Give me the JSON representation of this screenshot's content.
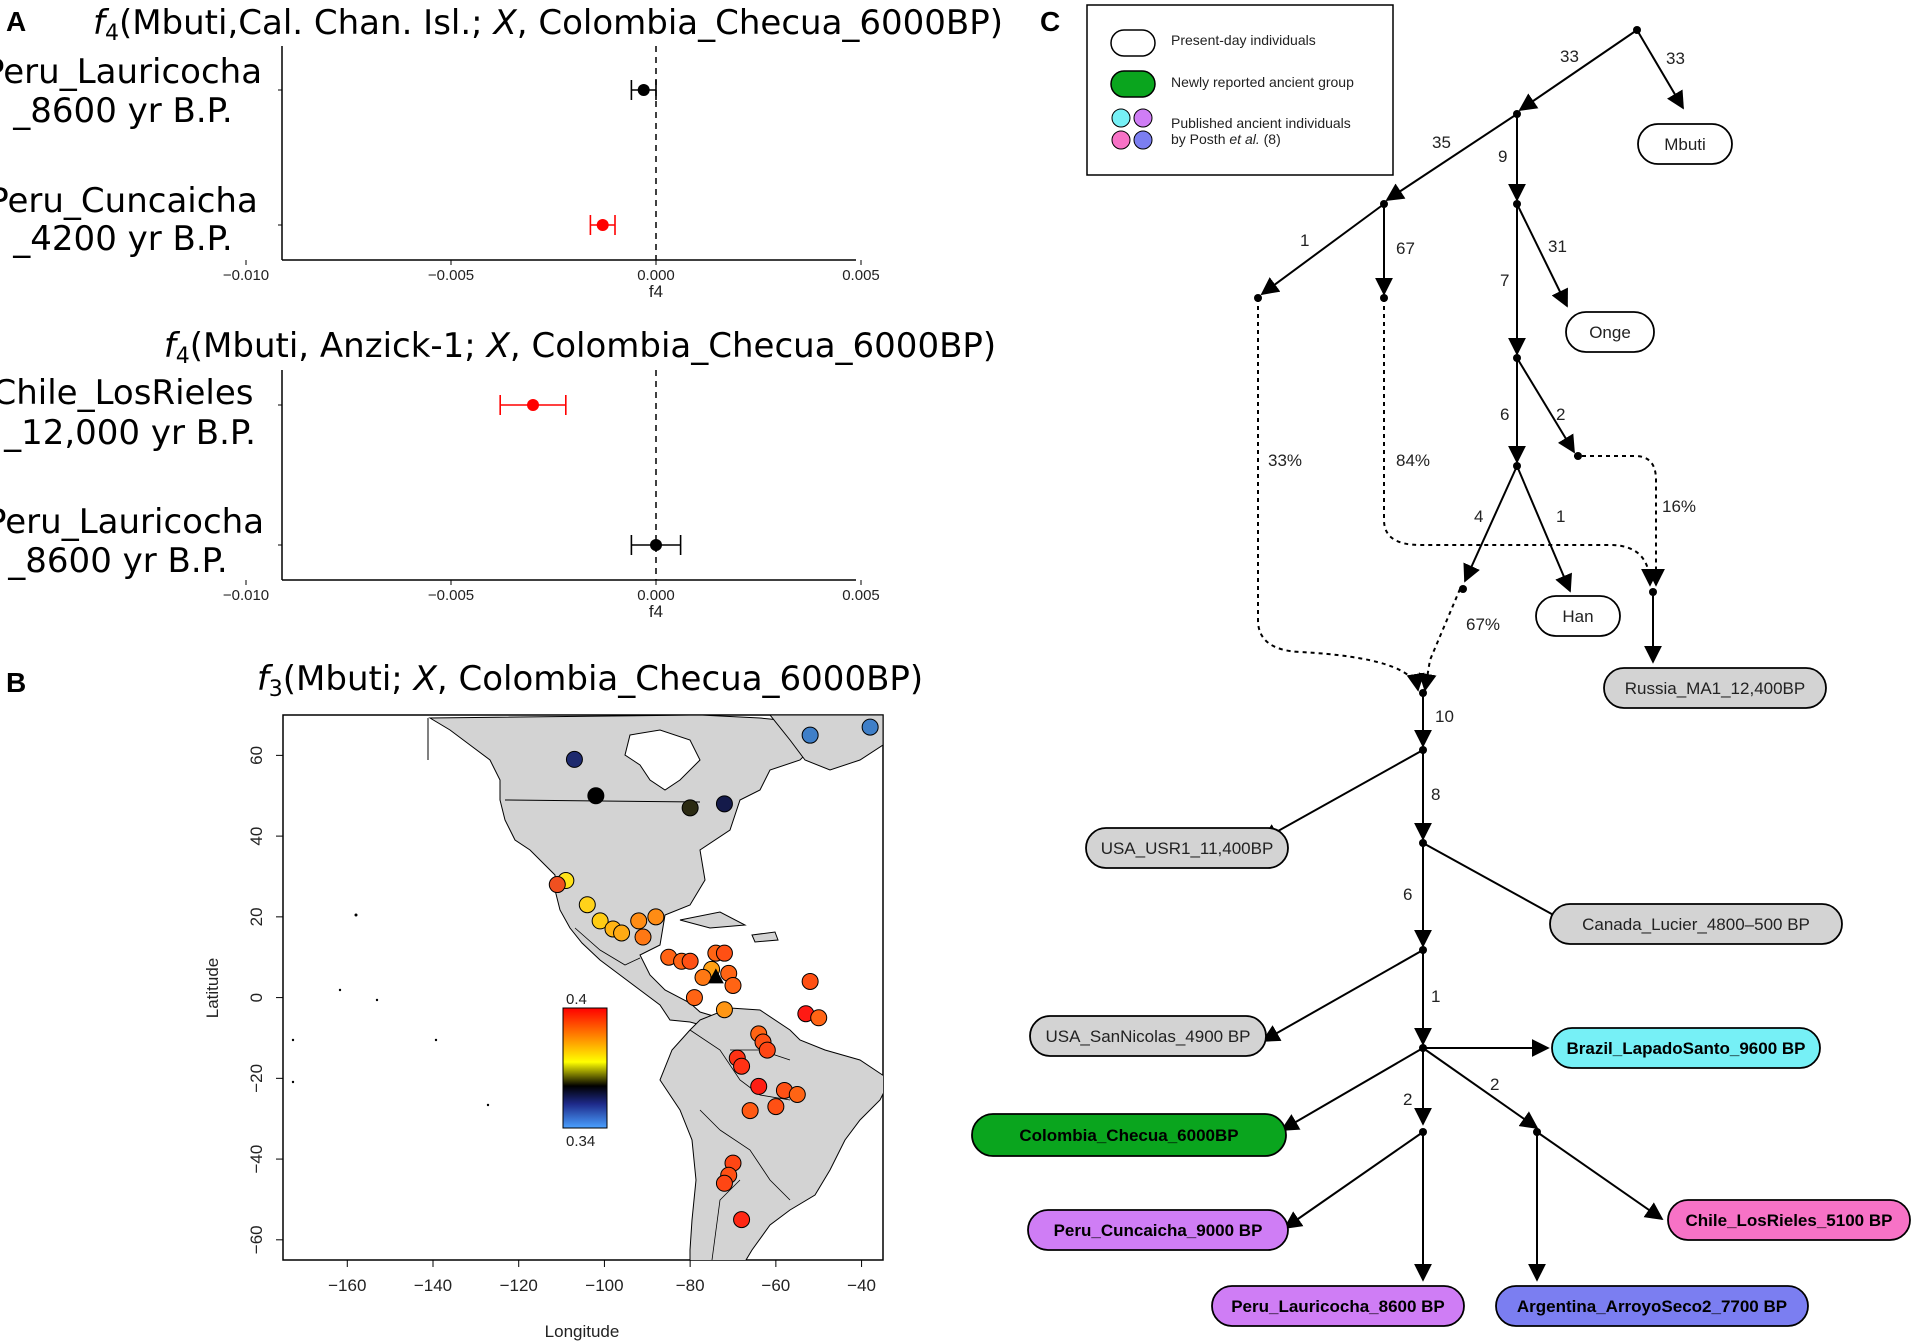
{
  "panels": {
    "a": "A",
    "b": "B",
    "c": "C"
  },
  "panel_a": {
    "plot1": {
      "title": "f₄(Mbuti,Cal. Chan. Isl.; X, Colombia_Checua_6000BP)",
      "title_parts": [
        "f",
        "4",
        "(Mbuti,Cal. Chan. Isl.; ",
        "X",
        ", Colombia_Checua_6000BP)"
      ],
      "rows": [
        {
          "line1": "Peru_Lauricocha",
          "line2": "_8600 yr B.P.",
          "value": -0.0003,
          "ci": [
            -0.0006,
            0.0
          ],
          "color": "#000000"
        },
        {
          "line1": "Peru_Cuncaicha",
          "line2": "_4200 yr B.P.",
          "value": -0.0013,
          "ci": [
            -0.0016,
            -0.001
          ],
          "color": "#ff0000"
        }
      ],
      "xticks": [
        "−0.010",
        "−0.005",
        "0.000",
        "0.005"
      ],
      "xlabel": "f4"
    },
    "plot2": {
      "title": "f₄(Mbuti, Anzick-1; X, Colombia_Checua_6000BP)",
      "title_parts": [
        "f",
        "4",
        "(Mbuti, Anzick-1; ",
        "X",
        ", Colombia_Checua_6000BP)"
      ],
      "rows": [
        {
          "line1": "Chile_LosRieles",
          "line2": "_12,000 yr B.P.",
          "value": -0.003,
          "ci": [
            -0.0038,
            -0.0022
          ],
          "color": "#ff0000"
        },
        {
          "line1": "Peru_Lauricocha",
          "line2": "_8600 yr B.P.",
          "value": 0.0,
          "ci": [
            -0.0006,
            0.0006
          ],
          "color": "#000000"
        }
      ],
      "xticks": [
        "−0.010",
        "−0.005",
        "0.000",
        "0.005"
      ],
      "xlabel": "f4"
    }
  },
  "panel_b": {
    "title_parts": [
      "f",
      "3",
      "(Mbuti;  ",
      "X",
      ", Colombia_Checua_6000BP)"
    ],
    "xlabel": "Longitude",
    "ylabel": "Latitude",
    "xticks": [
      "−160",
      "−140",
      "−120",
      "−100",
      "−80",
      "−60",
      "−40"
    ],
    "yticks": [
      "60",
      "40",
      "20",
      "0",
      "−20",
      "−40",
      "−60"
    ],
    "colorbar": {
      "max": "0.4",
      "min": "0.34"
    },
    "points": [
      {
        "lon": -107,
        "lat": 59,
        "color": "#1e2a6e"
      },
      {
        "lon": -102,
        "lat": 50,
        "color": "#000000"
      },
      {
        "lon": -80,
        "lat": 47,
        "color": "#2b2a12"
      },
      {
        "lon": -72,
        "lat": 48,
        "color": "#141a4a"
      },
      {
        "lon": -52,
        "lat": 65,
        "color": "#3f7fc8"
      },
      {
        "lon": -38,
        "lat": 67,
        "color": "#3f7fc8"
      },
      {
        "lon": -109,
        "lat": 29,
        "color": "#ffe21a"
      },
      {
        "lon": -111,
        "lat": 28,
        "color": "#f05020"
      },
      {
        "lon": -104,
        "lat": 23,
        "color": "#ffd21a"
      },
      {
        "lon": -101,
        "lat": 19,
        "color": "#ffcc14"
      },
      {
        "lon": -98,
        "lat": 17,
        "color": "#ffb414"
      },
      {
        "lon": -96,
        "lat": 16,
        "color": "#ffaa14"
      },
      {
        "lon": -92,
        "lat": 19,
        "color": "#ff8c14"
      },
      {
        "lon": -88,
        "lat": 20,
        "color": "#ff8c14"
      },
      {
        "lon": -91,
        "lat": 15,
        "color": "#ff7814"
      },
      {
        "lon": -85,
        "lat": 10,
        "color": "#ff6414"
      },
      {
        "lon": -82,
        "lat": 9,
        "color": "#ff6414"
      },
      {
        "lon": -80,
        "lat": 9,
        "color": "#ff5014"
      },
      {
        "lon": -74,
        "lat": 11,
        "color": "#ff6414"
      },
      {
        "lon": -72,
        "lat": 11,
        "color": "#ff5014"
      },
      {
        "lon": -75,
        "lat": 7,
        "color": "#ffa014"
      },
      {
        "lon": -77,
        "lat": 5,
        "color": "#ff7814"
      },
      {
        "lon": -71,
        "lat": 6,
        "color": "#ff6414"
      },
      {
        "lon": -70,
        "lat": 3,
        "color": "#ff6414"
      },
      {
        "lon": -79,
        "lat": 0,
        "color": "#ff6414"
      },
      {
        "lon": -72,
        "lat": -3,
        "color": "#ff9614"
      },
      {
        "lon": -52,
        "lat": 4,
        "color": "#ff5014"
      },
      {
        "lon": -53,
        "lat": -4,
        "color": "#ff1a14"
      },
      {
        "lon": -50,
        "lat": -5,
        "color": "#ff6414"
      },
      {
        "lon": -64,
        "lat": -9,
        "color": "#ff6414"
      },
      {
        "lon": -63,
        "lat": -11,
        "color": "#ff5014"
      },
      {
        "lon": -62,
        "lat": -13,
        "color": "#ff4614"
      },
      {
        "lon": -69,
        "lat": -15,
        "color": "#ff3214"
      },
      {
        "lon": -68,
        "lat": -17,
        "color": "#ff3214"
      },
      {
        "lon": -64,
        "lat": -22,
        "color": "#ff1e14"
      },
      {
        "lon": -58,
        "lat": -23,
        "color": "#ff5014"
      },
      {
        "lon": -55,
        "lat": -24,
        "color": "#ff6414"
      },
      {
        "lon": -60,
        "lat": -27,
        "color": "#ff5014"
      },
      {
        "lon": -66,
        "lat": -28,
        "color": "#ff5a14"
      },
      {
        "lon": -70,
        "lat": -41,
        "color": "#ff4614"
      },
      {
        "lon": -71,
        "lat": -44,
        "color": "#ff5014"
      },
      {
        "lon": -72,
        "lat": -46,
        "color": "#ff4614"
      },
      {
        "lon": -68,
        "lat": -55,
        "color": "#ff2814"
      }
    ],
    "triangle": {
      "lon": -74,
      "lat": 5,
      "color": "#000000"
    }
  },
  "panel_c": {
    "legend": {
      "present": "Present-day individuals",
      "new": "Newly reported ancient group",
      "published_line1": "Published ancient individuals",
      "published_line2_pre": "by Posth ",
      "published_line2_em": "et al.",
      "published_line2_post": " (8)"
    },
    "nodes": {
      "mbuti": "Mbuti",
      "onge": "Onge",
      "han": "Han",
      "russia": "Russia_MA1_12,400BP",
      "usr1": "USA_USR1_11,400BP",
      "lucier": "Canada_Lucier_4800–500 BP",
      "sannicolas": "USA_SanNicolas_4900 BP",
      "lapado": "Brazil_LapadoSanto_9600 BP",
      "checua": "Colombia_Checua_6000BP",
      "cuncaicha": "Peru_Cuncaicha_9000 BP",
      "losrieles": "Chile_LosRieles_5100 BP",
      "lauricocha": "Peru_Lauricocha_8600 BP",
      "arroyo": "Argentina_ArroyoSeco2_7700 BP"
    },
    "edge_labels": {
      "root_left": "33",
      "root_mbuti": "33",
      "l35": "35",
      "l9": "9",
      "l1": "1",
      "l67": "67",
      "l31": "31",
      "l7": "7",
      "l6": "6",
      "l2": "2",
      "p33": "33%",
      "p84": "84%",
      "p16": "16%",
      "l4": "4",
      "l1b": "1",
      "p67": "67%",
      "l10": "10",
      "l8": "8",
      "l6b": "6",
      "l1c": "1",
      "l2b": "2",
      "l2c": "2"
    },
    "colors": {
      "present": "#ffffff",
      "new": "#0aa51e",
      "gray": "#d3d3d3",
      "cyan": "#76f0f6",
      "violet": "#cf7df5",
      "pink": "#f772c6",
      "blue": "#7b7ef1"
    }
  }
}
